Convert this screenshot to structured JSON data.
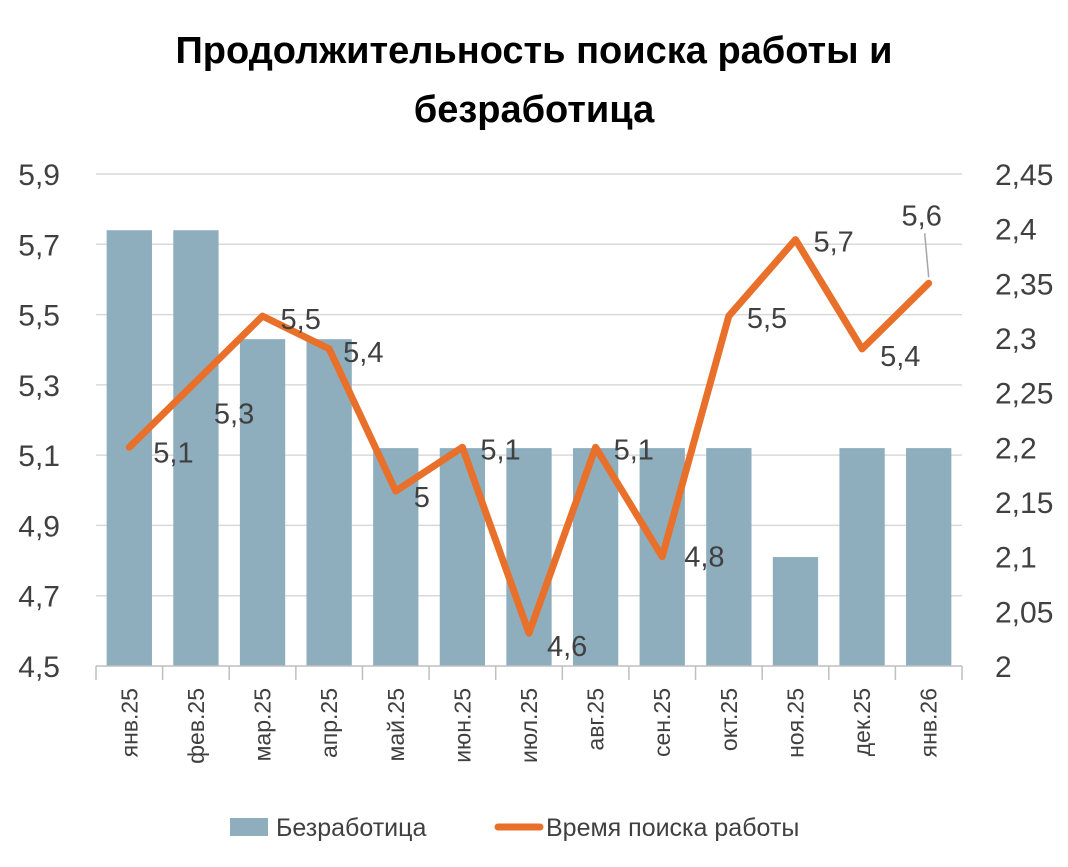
{
  "chart_data": {
    "type": "bar",
    "title_lines": [
      "Продолжительность поиска работы и",
      "безработица"
    ],
    "categories": [
      "янв.25",
      "фев.25",
      "мар.25",
      "апр.25",
      "май.25",
      "июн.25",
      "июл.25",
      "авг.25",
      "сен.25",
      "окт.25",
      "ноя.25",
      "дек.25",
      "янв.26"
    ],
    "left_axis": {
      "ylim": [
        4.5,
        5.9
      ],
      "ticks": [
        "4,5",
        "4,7",
        "4,9",
        "5,1",
        "5,3",
        "5,5",
        "5,7",
        "5,9"
      ]
    },
    "right_axis": {
      "ylim": [
        2.0,
        2.45
      ],
      "ticks": [
        "2",
        "2,05",
        "2,1",
        "2,15",
        "2,2",
        "2,25",
        "2,3",
        "2,35",
        "2,4",
        "2,45"
      ]
    },
    "grid": true,
    "legend_position": "bottom",
    "series": [
      {
        "name": "Безработица",
        "type": "bar",
        "axis": "left",
        "color": "#8EAEBE",
        "values": [
          5.74,
          5.74,
          5.43,
          5.43,
          5.12,
          5.12,
          5.12,
          5.12,
          5.12,
          5.12,
          4.81,
          5.12,
          5.12
        ]
      },
      {
        "name": "Время поиска работы",
        "type": "line",
        "axis": "right",
        "color": "#E8702A",
        "values": [
          2.2,
          2.26,
          2.32,
          2.29,
          2.16,
          2.2,
          2.03,
          2.2,
          2.1,
          2.32,
          2.39,
          2.29,
          2.35
        ],
        "data_labels": [
          "5,1",
          "5,3",
          "5,5",
          "5,4",
          "5",
          "5,1",
          "4,6",
          "5,1",
          "4,8",
          "5,5",
          "5,7",
          "5,4",
          "5,6"
        ]
      }
    ]
  }
}
